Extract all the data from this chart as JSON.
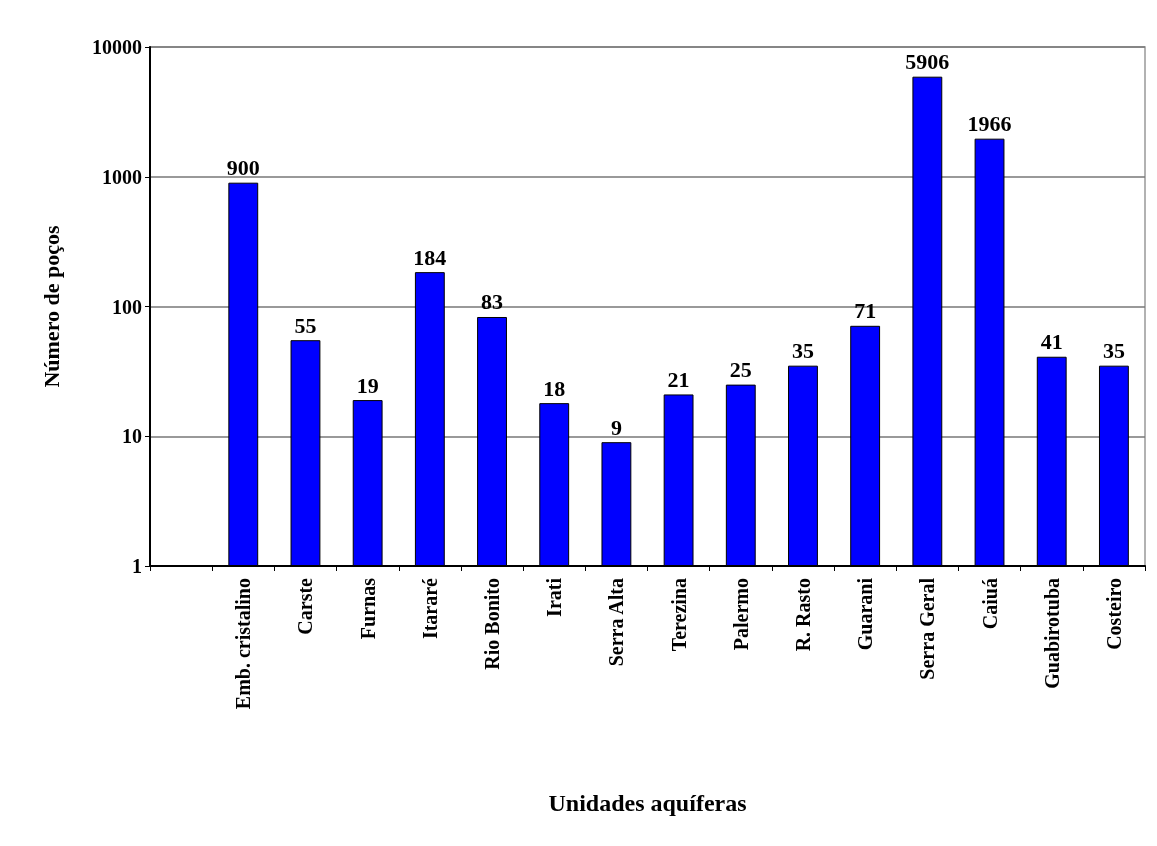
{
  "chart_data": {
    "type": "bar",
    "xlabel": "Unidades aquíferas",
    "ylabel": "Número de poços",
    "categories": [
      null,
      "Emb. cristalino",
      "Carste",
      "Furnas",
      "Itararé",
      "Rio Bonito",
      "Irati",
      "Serra Alta",
      "Terezina",
      "Palermo",
      "R. Rasto",
      "Guarani",
      "Serra Geral",
      "Caiuá",
      "Guabirotuba",
      "Costeiro"
    ],
    "values": [
      null,
      900,
      55,
      19,
      184,
      83,
      18,
      9,
      21,
      25,
      35,
      71,
      5906,
      1966,
      41,
      35
    ],
    "color": "#0000ff",
    "log": true,
    "ylim": [
      1,
      10000
    ],
    "yticks": [
      1,
      10,
      100,
      1000,
      10000
    ],
    "grid": "y",
    "data_labels": true
  }
}
